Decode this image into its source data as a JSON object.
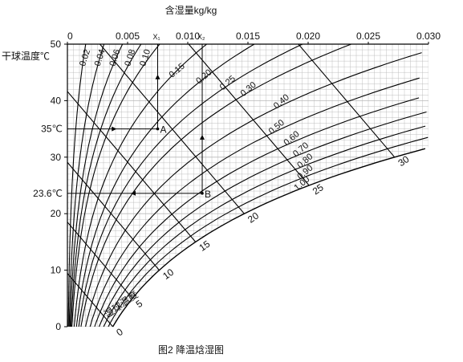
{
  "chart_data": {
    "type": "psychrometric",
    "title": "含湿量kg/kg",
    "caption": "图2 降温焓湿图",
    "y_axis": {
      "label": "干球温度℃",
      "ylim": [
        0,
        50
      ],
      "ticks": [
        {
          "value": 0,
          "label": "0"
        },
        {
          "value": 10,
          "label": "10"
        },
        {
          "value": 20,
          "label": "20"
        },
        {
          "value": 30,
          "label": "30"
        },
        {
          "value": 40,
          "label": "40"
        },
        {
          "value": 50,
          "label": "50"
        }
      ],
      "marked": [
        {
          "value": 35,
          "label": "35℃"
        },
        {
          "value": 23.6,
          "label": "23.6℃"
        }
      ]
    },
    "x_axis": {
      "label": "含湿量kg/kg",
      "xlim": [
        0,
        0.03
      ],
      "ticks": [
        {
          "value": 0,
          "label": "0"
        },
        {
          "value": 0.005,
          "label": "0.005"
        },
        {
          "value": 0.01,
          "label": "0.010"
        },
        {
          "value": 0.015,
          "label": "0.015"
        },
        {
          "value": 0.02,
          "label": "0.020"
        },
        {
          "value": 0.025,
          "label": "0.025"
        },
        {
          "value": 0.03,
          "label": "0.030"
        }
      ],
      "marked": [
        {
          "value": 0.0075,
          "label": "X₁"
        },
        {
          "value": 0.0112,
          "label": "X₂"
        }
      ]
    },
    "rh_curves": [
      {
        "rh": 0.02,
        "label": "0.02"
      },
      {
        "rh": 0.04,
        "label": "0.04"
      },
      {
        "rh": 0.06,
        "label": "0.06"
      },
      {
        "rh": 0.08,
        "label": "0.08"
      },
      {
        "rh": 0.1,
        "label": "0.10"
      },
      {
        "rh": 0.15,
        "label": "0.15"
      },
      {
        "rh": 0.2,
        "label": "0.20"
      },
      {
        "rh": 0.25,
        "label": "0.25"
      },
      {
        "rh": 0.3,
        "label": "0.30"
      },
      {
        "rh": 0.4,
        "label": "0.40"
      },
      {
        "rh": 0.5,
        "label": "0.50"
      },
      {
        "rh": 0.6,
        "label": "0.60"
      },
      {
        "rh": 0.7,
        "label": "0.70"
      },
      {
        "rh": 0.8,
        "label": "0.80"
      },
      {
        "rh": 0.9,
        "label": "0.90"
      },
      {
        "rh": 1.0,
        "label": "1.00"
      }
    ],
    "wet_bulb": {
      "label": "湿球温度",
      "lines": [
        0,
        5,
        10,
        15,
        20,
        25,
        30
      ],
      "labels": [
        "0",
        "5",
        "10",
        "15",
        "20",
        "25",
        "30"
      ]
    },
    "points": [
      {
        "name": "A",
        "t": 35,
        "x": 0.0075
      },
      {
        "name": "B",
        "t": 23.6,
        "x": 0.0112
      }
    ],
    "grid": true
  }
}
